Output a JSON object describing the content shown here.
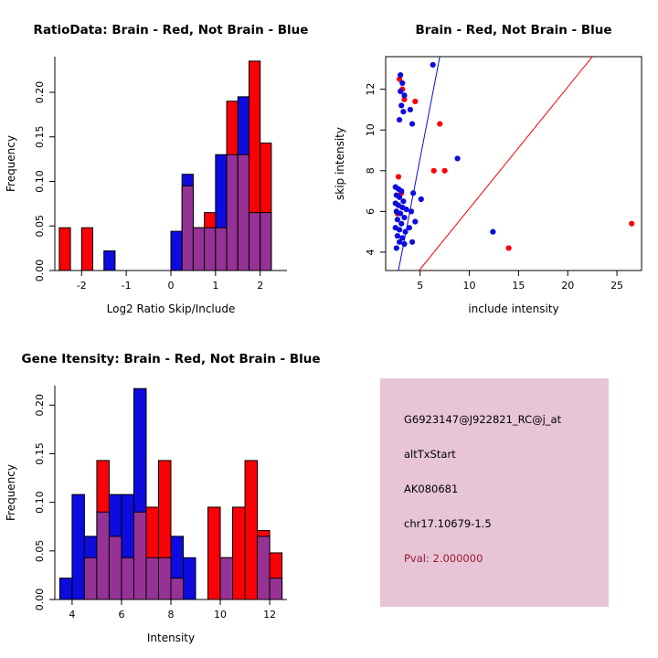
{
  "figure": {
    "background": "#FFFFFF"
  },
  "colors": {
    "brain": "#FB0007",
    "not_brain": "#0D0BDE",
    "overlap": "#963296",
    "axis": "#000000",
    "pval_text": "#9B1B30",
    "info_box_bg": "#E7C5D7"
  },
  "chart_data": [
    {
      "id": "ratio-hist",
      "type": "bar",
      "subtype": "overlapping-histogram",
      "title": "RatioData: Brain - Red, Not Brain - Blue",
      "xlabel": "Log2 Ratio Skip/Include",
      "ylabel": "Frequency",
      "xlim": [
        -2.6,
        2.6
      ],
      "ylim": [
        0,
        0.24
      ],
      "xticks": [
        -2,
        -1,
        0,
        1,
        2
      ],
      "yticks": [
        0,
        0.05,
        0.1,
        0.15,
        0.2
      ],
      "ytick_labels": [
        "0.00",
        "0.05",
        "0.10",
        "0.15",
        "0.20"
      ],
      "grid": false,
      "legend": "none",
      "bin_width": 0.25,
      "bin_left_edges": [
        -2.5,
        -2.25,
        -2.0,
        -1.75,
        -1.5,
        -1.25,
        -1.0,
        -0.75,
        -0.5,
        -0.25,
        0.0,
        0.25,
        0.5,
        0.75,
        1.0,
        1.25,
        1.5,
        1.75,
        2.0,
        2.25
      ],
      "series": [
        {
          "name": "Brain",
          "color_key": "brain",
          "values": [
            0.048,
            0,
            0.048,
            0,
            0,
            0,
            0,
            0,
            0,
            0,
            0,
            0.095,
            0.048,
            0.065,
            0.048,
            0.19,
            0.13,
            0.235,
            0.143,
            0
          ]
        },
        {
          "name": "Not Brain",
          "color_key": "not_brain",
          "values": [
            0,
            0,
            0,
            0,
            0.022,
            0,
            0,
            0,
            0,
            0,
            0.044,
            0.108,
            0.048,
            0.048,
            0.13,
            0.13,
            0.195,
            0.065,
            0.065,
            0
          ]
        }
      ]
    },
    {
      "id": "scatter",
      "type": "scatter",
      "title": "Brain - Red, Not Brain - Blue",
      "xlabel": "include intensity",
      "ylabel": "skip intensity",
      "xlim": [
        1.5,
        27.5
      ],
      "ylim": [
        3.1,
        13.6
      ],
      "xticks": [
        5,
        10,
        15,
        20,
        25
      ],
      "yticks": [
        4,
        6,
        8,
        10,
        12
      ],
      "box": true,
      "grid": false,
      "legend": "none",
      "lines": [
        {
          "color_key": "not_brain",
          "x1": 2.8,
          "y1": 3.1,
          "x2": 7.0,
          "y2": 13.6
        },
        {
          "color_key": "brain",
          "x1": 4.9,
          "y1": 3.1,
          "x2": 22.5,
          "y2": 13.6
        }
      ],
      "points": {
        "red": [
          [
            2.9,
            12.5
          ],
          [
            3.2,
            12.0
          ],
          [
            3.4,
            11.5
          ],
          [
            4.5,
            11.4
          ],
          [
            7.0,
            10.3
          ],
          [
            6.4,
            8.0
          ],
          [
            7.5,
            8.0
          ],
          [
            2.8,
            7.7
          ],
          [
            3.1,
            6.9
          ],
          [
            2.7,
            5.9
          ],
          [
            14.0,
            4.2
          ],
          [
            26.5,
            5.4
          ]
        ],
        "blue": [
          [
            6.3,
            13.2
          ],
          [
            3.0,
            12.7
          ],
          [
            3.2,
            12.3
          ],
          [
            3.0,
            11.9
          ],
          [
            3.4,
            11.7
          ],
          [
            3.1,
            11.2
          ],
          [
            3.3,
            10.9
          ],
          [
            2.9,
            10.5
          ],
          [
            4.2,
            10.3
          ],
          [
            4.0,
            11.0
          ],
          [
            8.8,
            8.6
          ],
          [
            5.1,
            6.6
          ],
          [
            2.5,
            7.2
          ],
          [
            2.8,
            7.1
          ],
          [
            3.1,
            7.0
          ],
          [
            2.6,
            6.8
          ],
          [
            2.9,
            6.7
          ],
          [
            3.3,
            6.5
          ],
          [
            2.5,
            6.4
          ],
          [
            2.8,
            6.3
          ],
          [
            3.2,
            6.2
          ],
          [
            3.6,
            6.1
          ],
          [
            2.6,
            6.0
          ],
          [
            3.0,
            5.9
          ],
          [
            3.4,
            5.7
          ],
          [
            2.7,
            5.6
          ],
          [
            3.1,
            5.4
          ],
          [
            2.5,
            5.2
          ],
          [
            2.9,
            5.1
          ],
          [
            3.5,
            5.0
          ],
          [
            2.7,
            4.8
          ],
          [
            3.2,
            4.7
          ],
          [
            2.9,
            4.5
          ],
          [
            3.4,
            4.4
          ],
          [
            2.6,
            4.2
          ],
          [
            4.3,
            6.9
          ],
          [
            4.1,
            6.0
          ],
          [
            4.5,
            5.5
          ],
          [
            3.9,
            5.2
          ],
          [
            4.2,
            4.5
          ],
          [
            12.4,
            5.0
          ]
        ]
      }
    },
    {
      "id": "gene-hist",
      "type": "bar",
      "subtype": "overlapping-histogram",
      "title": "Gene Itensity: Brain - Red, Not Brain - Blue",
      "xlabel": "Intensity",
      "ylabel": "Frequency",
      "xlim": [
        3.3,
        12.7
      ],
      "ylim": [
        0,
        0.22
      ],
      "xticks": [
        4,
        6,
        8,
        10,
        12
      ],
      "yticks": [
        0,
        0.05,
        0.1,
        0.15,
        0.2
      ],
      "ytick_labels": [
        "0.00",
        "0.05",
        "0.10",
        "0.15",
        "0.20"
      ],
      "grid": false,
      "legend": "none",
      "bin_width": 0.5,
      "bin_left_edges": [
        3.5,
        4.0,
        4.5,
        5.0,
        5.5,
        6.0,
        6.5,
        7.0,
        7.5,
        8.0,
        8.5,
        9.0,
        9.5,
        10.0,
        10.5,
        11.0,
        11.5,
        12.0
      ],
      "series": [
        {
          "name": "Brain",
          "color_key": "brain",
          "values": [
            0,
            0,
            0.043,
            0.143,
            0.065,
            0.043,
            0.09,
            0.095,
            0.143,
            0.022,
            0,
            0,
            0.095,
            0.043,
            0.095,
            0.143,
            0.071,
            0.048
          ]
        },
        {
          "name": "Not Brain",
          "color_key": "not_brain",
          "values": [
            0.022,
            0.108,
            0.065,
            0.09,
            0.108,
            0.108,
            0.217,
            0.043,
            0.043,
            0.065,
            0.043,
            0,
            0,
            0.043,
            0,
            0,
            0.065,
            0.022
          ]
        }
      ]
    }
  ],
  "info_box": {
    "lines": [
      {
        "label": "probe-id",
        "text": "G6923147@J922821_RC@j_at",
        "color_key": "axis"
      },
      {
        "label": "splice-event-type",
        "text": "altTxStart",
        "color_key": "axis"
      },
      {
        "label": "accession",
        "text": "AK080681",
        "color_key": "axis"
      },
      {
        "label": "locus",
        "text": "chr17.10679-1.5",
        "color_key": "axis"
      },
      {
        "label": "pval",
        "text": "Pval: 2.000000",
        "color_key": "pval_text"
      }
    ]
  }
}
